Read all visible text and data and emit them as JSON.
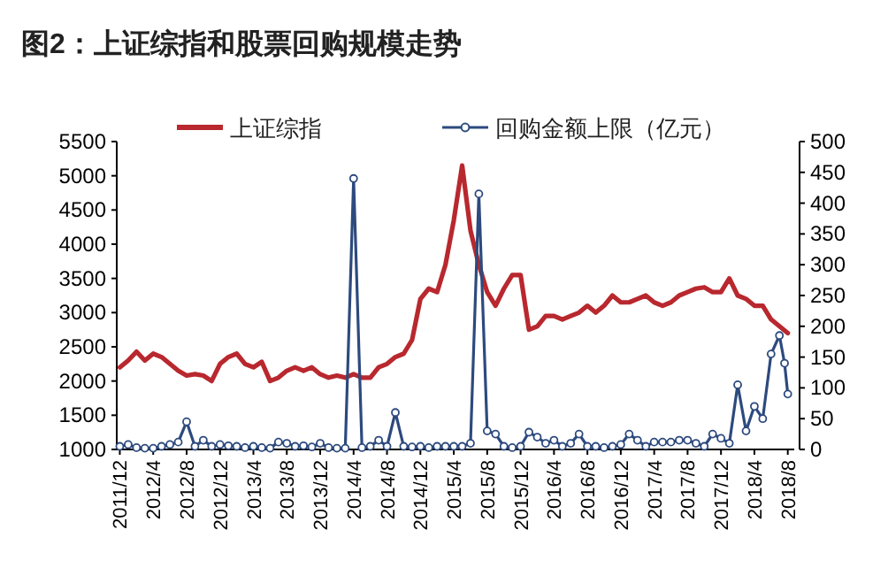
{
  "chart_data": {
    "type": "line",
    "title": "图2：上证综指和股票回购规模走势",
    "xlim": [
      "2011-11-20",
      "2018-08-25"
    ],
    "xticks": [
      {
        "value": "2011-12",
        "label": "2011/12"
      },
      {
        "value": "2012-04",
        "label": "2012/4"
      },
      {
        "value": "2012-08",
        "label": "2012/8"
      },
      {
        "value": "2012-12",
        "label": "2012/12"
      },
      {
        "value": "2013-04",
        "label": "2013/4"
      },
      {
        "value": "2013-08",
        "label": "2013/8"
      },
      {
        "value": "2013-12",
        "label": "2013/12"
      },
      {
        "value": "2014-04",
        "label": "2014/4"
      },
      {
        "value": "2014-08",
        "label": "2014/8"
      },
      {
        "value": "2014-12",
        "label": "2014/12"
      },
      {
        "value": "2015-04",
        "label": "2015/4"
      },
      {
        "value": "2015-08",
        "label": "2015/8"
      },
      {
        "value": "2015-12",
        "label": "2015/12"
      },
      {
        "value": "2016-04",
        "label": "2016/4"
      },
      {
        "value": "2016-08",
        "label": "2016/8"
      },
      {
        "value": "2016-12",
        "label": "2016/12"
      },
      {
        "value": "2017-04",
        "label": "2017/4"
      },
      {
        "value": "2017-08",
        "label": "2017/8"
      },
      {
        "value": "2017-12",
        "label": "2017/12"
      },
      {
        "value": "2018-04",
        "label": "2018/4"
      },
      {
        "value": "2018-08",
        "label": "2018/8"
      }
    ],
    "ylim": [
      1000,
      5500
    ],
    "yticks": [
      1000,
      1500,
      2000,
      2500,
      3000,
      3500,
      4000,
      4500,
      5000,
      5500
    ],
    "y2lim": [
      0,
      500
    ],
    "y2ticks": [
      0,
      50,
      100,
      150,
      200,
      250,
      300,
      350,
      400,
      450,
      500
    ],
    "legend": "top",
    "grid": false,
    "series": [
      {
        "name": "上证综指",
        "color": "#b8282e",
        "marker": "none",
        "x": [
          "2011-12",
          "2012-01",
          "2012-02",
          "2012-03",
          "2012-04",
          "2012-05",
          "2012-06",
          "2012-07",
          "2012-08",
          "2012-09",
          "2012-10",
          "2012-11",
          "2012-12",
          "2013-01",
          "2013-02",
          "2013-03",
          "2013-04",
          "2013-05",
          "2013-06",
          "2013-07",
          "2013-08",
          "2013-09",
          "2013-10",
          "2013-11",
          "2013-12",
          "2014-01",
          "2014-02",
          "2014-03",
          "2014-04",
          "2014-05",
          "2014-06",
          "2014-07",
          "2014-08",
          "2014-09",
          "2014-10",
          "2014-11",
          "2014-12",
          "2015-01",
          "2015-02",
          "2015-03",
          "2015-04",
          "2015-05",
          "2015-06",
          "2015-07",
          "2015-08",
          "2015-09",
          "2015-10",
          "2015-11",
          "2015-12",
          "2016-01",
          "2016-02",
          "2016-03",
          "2016-04",
          "2016-05",
          "2016-06",
          "2016-07",
          "2016-08",
          "2016-09",
          "2016-10",
          "2016-11",
          "2016-12",
          "2017-01",
          "2017-02",
          "2017-03",
          "2017-04",
          "2017-05",
          "2017-06",
          "2017-07",
          "2017-08",
          "2017-09",
          "2017-10",
          "2017-11",
          "2017-12",
          "2018-01",
          "2018-02",
          "2018-03",
          "2018-04",
          "2018-05",
          "2018-06",
          "2018-07",
          "2018-08"
        ],
        "values": [
          2200,
          2300,
          2430,
          2300,
          2400,
          2350,
          2250,
          2150,
          2080,
          2100,
          2080,
          2000,
          2250,
          2350,
          2400,
          2250,
          2200,
          2280,
          2000,
          2050,
          2150,
          2200,
          2150,
          2200,
          2100,
          2050,
          2080,
          2050,
          2100,
          2050,
          2050,
          2200,
          2250,
          2350,
          2400,
          2600,
          3200,
          3350,
          3300,
          3700,
          4350,
          5150,
          4200,
          3700,
          3300,
          3100,
          3350,
          3550,
          3550,
          2750,
          2800,
          2950,
          2950,
          2900,
          2950,
          3000,
          3100,
          3000,
          3100,
          3250,
          3150,
          3150,
          3200,
          3250,
          3150,
          3100,
          3150,
          3250,
          3300,
          3350,
          3370,
          3300,
          3300,
          3500,
          3250,
          3200,
          3100,
          3100,
          2900,
          2800,
          2700
        ]
      },
      {
        "name": "回购金额上限（亿元）",
        "color": "#2d4a7e",
        "marker": "circle",
        "axis": "y2",
        "x": [
          "2011-12",
          "2012-01",
          "2012-02",
          "2012-03",
          "2012-04",
          "2012-05",
          "2012-06",
          "2012-07",
          "2012-08",
          "2012-09",
          "2012-10",
          "2012-11",
          "2012-12",
          "2013-01",
          "2013-02",
          "2013-03",
          "2013-04",
          "2013-05",
          "2013-06",
          "2013-07",
          "2013-08",
          "2013-09",
          "2013-10",
          "2013-11",
          "2013-12",
          "2014-01",
          "2014-02",
          "2014-03",
          "2014-04",
          "2014-05",
          "2014-06",
          "2014-07",
          "2014-08",
          "2014-09",
          "2014-10",
          "2014-11",
          "2014-12",
          "2015-01",
          "2015-02",
          "2015-03",
          "2015-04",
          "2015-05",
          "2015-06",
          "2015-07",
          "2015-08",
          "2015-09",
          "2015-10",
          "2015-11",
          "2015-12",
          "2016-01",
          "2016-02",
          "2016-03",
          "2016-04",
          "2016-05",
          "2016-06",
          "2016-07",
          "2016-08",
          "2016-09",
          "2016-10",
          "2016-11",
          "2016-12",
          "2017-01",
          "2017-02",
          "2017-03",
          "2017-04",
          "2017-05",
          "2017-06",
          "2017-07",
          "2017-08",
          "2017-09",
          "2017-10",
          "2017-11",
          "2017-12",
          "2018-01",
          "2018-02",
          "2018-03",
          "2018-04",
          "2018-05",
          "2018-06",
          "2018-07",
          "2018-07-20",
          "2018-08"
        ],
        "values": [
          5,
          8,
          3,
          2,
          2,
          5,
          8,
          12,
          45,
          5,
          15,
          5,
          8,
          6,
          5,
          3,
          5,
          3,
          2,
          12,
          10,
          5,
          6,
          4,
          10,
          3,
          2,
          2,
          440,
          3,
          5,
          15,
          5,
          60,
          5,
          4,
          5,
          3,
          5,
          5,
          5,
          5,
          10,
          415,
          30,
          25,
          5,
          3,
          5,
          28,
          20,
          10,
          15,
          5,
          10,
          25,
          5,
          5,
          3,
          5,
          8,
          25,
          15,
          5,
          12,
          12,
          12,
          15,
          15,
          10,
          5,
          25,
          18,
          10,
          105,
          30,
          70,
          50,
          155,
          185,
          140,
          90
        ]
      }
    ]
  }
}
